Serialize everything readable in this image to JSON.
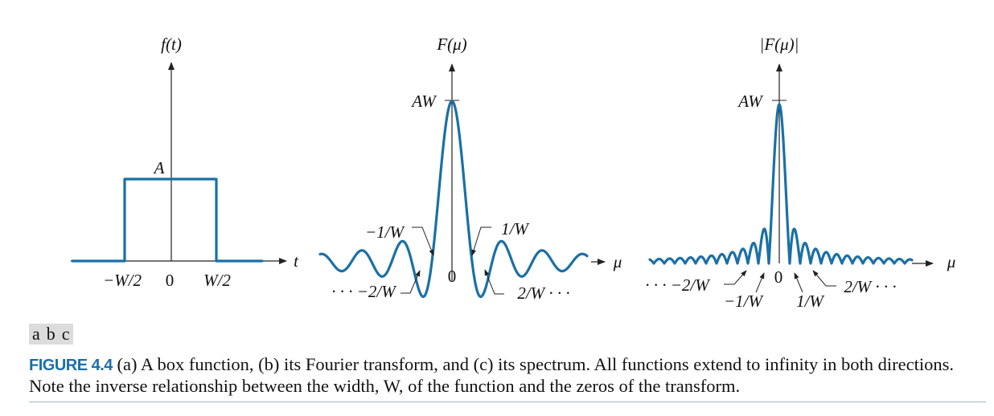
{
  "panels": {
    "a": {
      "function_label": "f(t)",
      "amplitude_label": "A",
      "axis_label": "t",
      "tick_left": "−W/2",
      "tick_zero": "0",
      "tick_right": "W/2"
    },
    "b": {
      "function_label": "F(μ)",
      "peak_label": "AW",
      "axis_label": "μ",
      "zero_label": "0",
      "label_neg1": "−1/W",
      "label_pos1": "1/W",
      "label_neg2": "· · · −2/W",
      "label_pos2": "2/W · · ·"
    },
    "c": {
      "function_label": "|F(μ)|",
      "peak_label": "AW",
      "axis_label": "μ",
      "zero_label": "0",
      "label_neg1": "−1/W",
      "label_pos1": "1/W",
      "label_neg2": "· · · −2/W",
      "label_pos2": "2/W · · ·"
    }
  },
  "panel_tags": [
    "a",
    "b",
    "c"
  ],
  "caption": {
    "figure_label": "FIGURE 4.4",
    "text": " (a) A box function, (b) its Fourier transform, and (c) its spectrum. All functions extend to infinity in both directions. Note the inverse relationship between the width, W, of the function and the zeros of the transform."
  },
  "colors": {
    "curve": "#1a70a6",
    "axis": "#222222"
  }
}
